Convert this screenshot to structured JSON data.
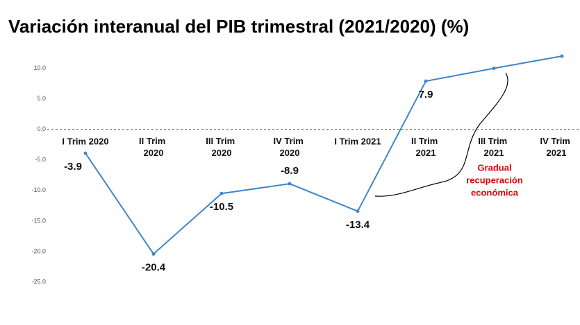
{
  "chart_data": {
    "type": "line",
    "title": "Variación interanual del PIB trimestral (2021/2020) (%)",
    "categories": [
      "I Trim 2020",
      "II Trim 2020",
      "III Trim 2020",
      "IV Trim 2020",
      "I Trim 2021",
      "II Trim 2021",
      "III Trim 2021",
      "IV Trim 2021"
    ],
    "series": [
      {
        "name": "PIB",
        "color": "#3f86c8",
        "values": [
          -3.9,
          -20.4,
          -10.5,
          -8.9,
          -13.4,
          7.9,
          10,
          12
        ],
        "value_labels": [
          "-3.9",
          "-20.4",
          "-10.5",
          "-8.9",
          "-13.4",
          "7.9",
          null,
          null
        ]
      }
    ],
    "ylim": [
      -25,
      12
    ],
    "yticks": [
      {
        "value": -25,
        "label": "-25.0"
      },
      {
        "value": -20,
        "label": "-20.0"
      },
      {
        "value": -15,
        "label": "-15.0"
      },
      {
        "value": -10,
        "label": "-10.0"
      },
      {
        "value": -5,
        "label": "-5.0"
      },
      {
        "value": 0,
        "label": "0.0"
      },
      {
        "value": 5,
        "label": "5.0"
      },
      {
        "value": 10,
        "label": "10.0"
      }
    ],
    "annotation": [
      "Gradual",
      "recuperación",
      "económica"
    ]
  }
}
